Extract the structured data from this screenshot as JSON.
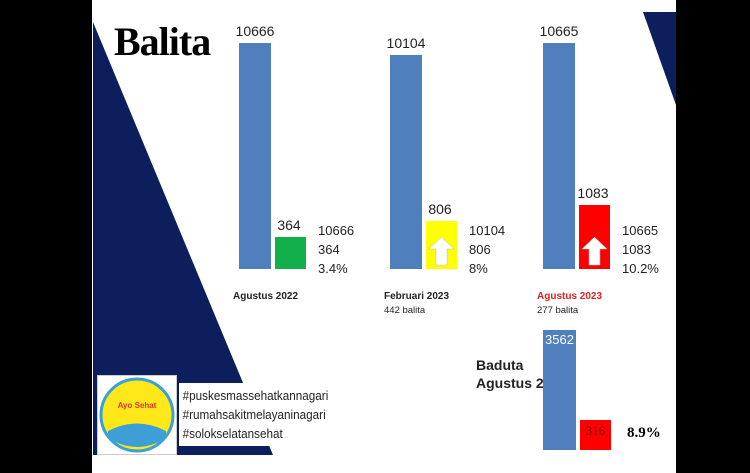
{
  "title": "Balita",
  "colors": {
    "navy": "#0c1f5c",
    "blue": "#4f7fbd",
    "green": "#12b04a",
    "yellow": "#ffff00",
    "red": "#ff0000"
  },
  "chart_data": {
    "type": "bar",
    "title": "Balita",
    "groups": [
      {
        "label": "Agustus 2022",
        "sublabel": "",
        "total": 10666,
        "cases": 364,
        "percent": "3.4%",
        "case_color": "green",
        "arrow": false,
        "total_label": "10666",
        "case_label": "364",
        "side": [
          "10666",
          "364",
          "3.4%"
        ]
      },
      {
        "label": "Februari 2023",
        "sublabel": "442 balita",
        "total": 10104,
        "cases": 806,
        "percent": "8%",
        "case_color": "yellow",
        "arrow": true,
        "total_label": "10104",
        "case_label": "806",
        "side": [
          "10104",
          "806",
          "8%"
        ]
      },
      {
        "label": "Agustus 2023",
        "sublabel": "277 balita",
        "total": 10665,
        "cases": 1083,
        "percent": "10.2%",
        "case_color": "red",
        "arrow": true,
        "total_label": "10665",
        "case_label": "1083",
        "side": [
          "10665",
          "1083",
          "10.2%"
        ]
      }
    ],
    "baduta": {
      "label_line1": "Baduta",
      "label_line2": "Agustus 2023",
      "total": 3562,
      "cases": 316,
      "total_label": "3562",
      "case_label": "316",
      "percent": "8.9%"
    }
  },
  "hashtags": [
    "#puskesmassehatkannagari",
    "#rumahsakitmelayaninagari",
    "#solokselatansehat"
  ],
  "logo_text": "Ayo Sehat"
}
